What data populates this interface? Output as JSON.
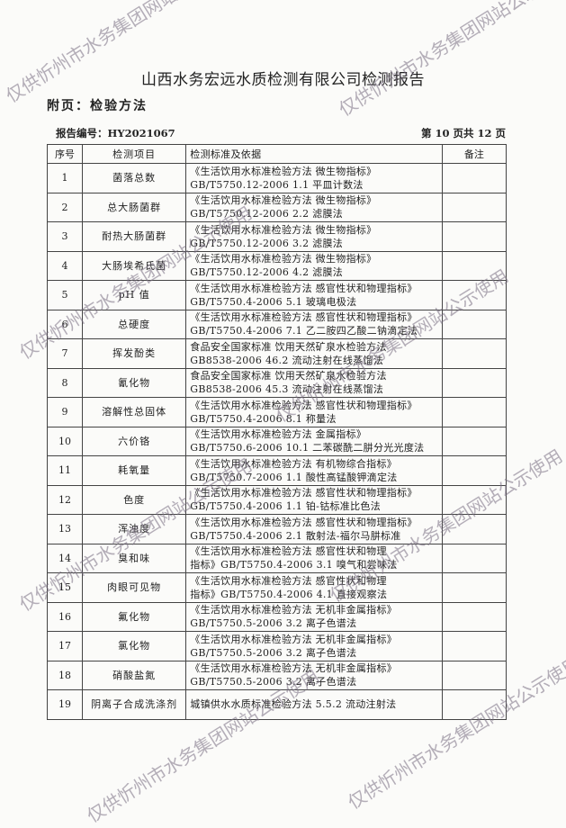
{
  "title": "山西水务宏远水质检测有限公司检测报告",
  "subtitle": "附页：检验方法",
  "report_no": "报告编号：HY2021067",
  "page_info": "第 10 页共 12 页",
  "watermark": "仅供忻州市水务集团网站公示使用",
  "table": {
    "headers": [
      "序号",
      "检测项目",
      "检测标准及依据",
      "备注"
    ],
    "rows": [
      {
        "no": "1",
        "item": "菌落总数",
        "line1": "《生活饮用水标准检验方法 微生物指标》",
        "line2": "GB/T5750.12-2006  1.1 平皿计数法",
        "note": ""
      },
      {
        "no": "2",
        "item": "总大肠菌群",
        "line1": "《生活饮用水标准检验方法 微生物指标》",
        "line2": "GB/T5750.12-2006  2.2 滤膜法",
        "note": ""
      },
      {
        "no": "3",
        "item": "耐热大肠菌群",
        "line1": "《生活饮用水标准检验方法 微生物指标》",
        "line2": "GB/T5750.12-2006  3.2 滤膜法",
        "note": ""
      },
      {
        "no": "4",
        "item": "大肠埃希氏菌",
        "line1": "《生活饮用水标准检验方法 微生物指标》",
        "line2": "GB/T5750.12-2006  4.2 滤膜法",
        "note": ""
      },
      {
        "no": "5",
        "item": "pH 值",
        "line1": "《生活饮用水标准检验方法 感官性状和物理指标》",
        "line2": "GB/T5750.4-2006  5.1 玻璃电极法",
        "note": ""
      },
      {
        "no": "6",
        "item": "总硬度",
        "line1": "《生活饮用水标准检验方法 感官性状和物理指标》",
        "line2": "GB/T5750.4-2006  7.1 乙二胺四乙酸二钠滴定法",
        "note": ""
      },
      {
        "no": "7",
        "item": "挥发酚类",
        "line1": "食品安全国家标准  饮用天然矿泉水检验方法",
        "line2": "GB8538-2006   46.2 流动注射在线蒸馏法",
        "note": ""
      },
      {
        "no": "8",
        "item": "氰化物",
        "line1": "食品安全国家标准  饮用天然矿泉水检验方法",
        "line2": "GB8538-2006   45.3 流动注射在线蒸馏法",
        "note": ""
      },
      {
        "no": "9",
        "item": "溶解性总固体",
        "line1": "《生活饮用水标准检验方法 感官性状和物理指标》",
        "line2": "GB/T5750.4-2006  8.1 称量法",
        "note": ""
      },
      {
        "no": "10",
        "item": "六价铬",
        "line1": "《生活饮用水标准检验方法 金属指标》",
        "line2": "GB/T5750.6-2006  10.1 二苯碳酰二肼分光光度法",
        "note": ""
      },
      {
        "no": "11",
        "item": "耗氧量",
        "line1": "《生活饮用水标准检验方法 有机物综合指标》",
        "line2": "GB/T5750.7-2006  1.1 酸性高锰酸钾滴定法",
        "note": ""
      },
      {
        "no": "12",
        "item": "色度",
        "line1": "《生活饮用水标准检验方法 感官性状和物理指标》",
        "line2": "GB/T5750.4-2006  1.1 铂-钴标准比色法",
        "note": ""
      },
      {
        "no": "13",
        "item": "浑浊度",
        "line1": "《生活饮用水标准检验方法 感官性状和物理指标》",
        "line2": "GB/T5750.4-2006  2.1 散射法-福尔马肼标准",
        "note": ""
      },
      {
        "no": "14",
        "item": "臭和味",
        "line1": "《生活饮用水标准检验方法 感官性状和物理",
        "line2": "指标》GB/T5750.4-2006 3.1 嗅气和尝味法",
        "note": ""
      },
      {
        "no": "15",
        "item": "肉眼可见物",
        "line1": "《生活饮用水标准检验方法 感官性状和物理",
        "line2": "指标》GB/T5750.4-2006 4.1 直接观察法",
        "note": ""
      },
      {
        "no": "16",
        "item": "氟化物",
        "line1": "《生活饮用水标准检验方法 无机非金属指标》",
        "line2": "GB/T5750.5-2006  3.2 离子色谱法",
        "note": ""
      },
      {
        "no": "17",
        "item": "氯化物",
        "line1": "《生活饮用水标准检验方法 无机非金属指标》",
        "line2": "GB/T5750.5-2006  3.2 离子色谱法",
        "note": ""
      },
      {
        "no": "18",
        "item": "硝酸盐氮",
        "line1": "《生活饮用水标准检验方法 无机非金属指标》",
        "line2": "GB/T5750.5-2006  3.2 离子色谱法",
        "note": ""
      },
      {
        "no": "19",
        "item": "阴离子合成洗涤剂",
        "line1": "城镇供水水质标准检验方法 5.5.2  流动注射法",
        "line2": "",
        "note": ""
      }
    ]
  }
}
